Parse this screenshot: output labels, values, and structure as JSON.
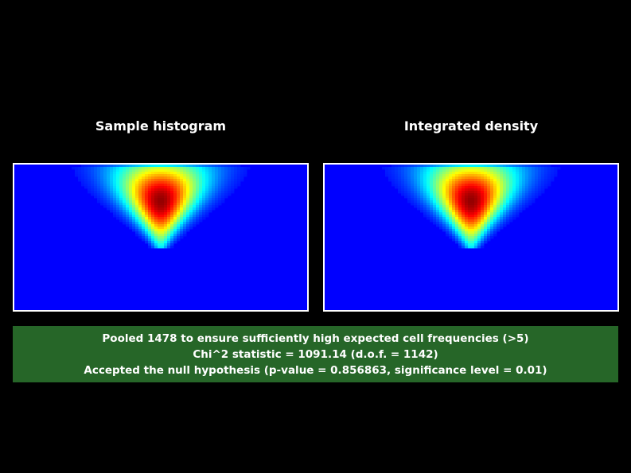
{
  "colors": {
    "background": "#000000",
    "panel_border": "#ffffff",
    "heatmap_low": "#0000ff",
    "result_box": "#266628",
    "text": "#ffffff"
  },
  "chart_data": [
    {
      "type": "heatmap",
      "title": "Sample histogram",
      "colormap": "jet",
      "peak": {
        "x": 0.5,
        "y": 0.25
      },
      "grid": false
    },
    {
      "type": "heatmap",
      "title": "Integrated density",
      "colormap": "jet",
      "peak": {
        "x": 0.5,
        "y": 0.25
      },
      "grid": false
    }
  ],
  "result": {
    "line1": "Pooled 1478 to ensure sufficiently high expected cell frequencies (>5)",
    "line2": "Chi^2 statistic = 1091.14 (d.o.f. = 1142)",
    "line3": "Accepted the null hypothesis (p-value = 0.856863, significance level = 0.01)",
    "pooled": 1478,
    "chi2": 1091.14,
    "dof": 1142,
    "p_value": 0.856863,
    "significance_level": 0.01,
    "accepted": true
  }
}
